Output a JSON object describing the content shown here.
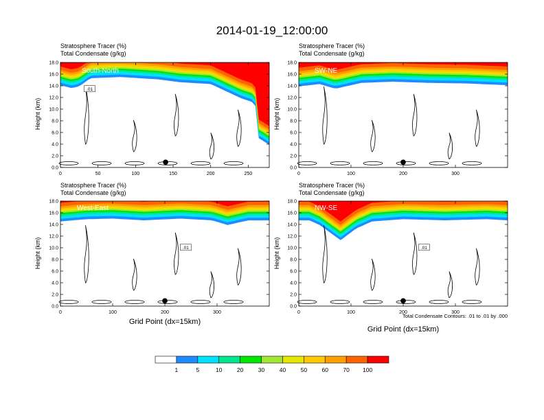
{
  "figure": {
    "title": "2014-01-19_12:00:00",
    "xlabel": "Grid Point (dx=15km)",
    "ylabel": "Height (km)",
    "contour_note": "Total Condensate Contours: .01 to .01 by .000"
  },
  "colors": {
    "bins": [
      "#ffffff",
      "#1e8cff",
      "#00e1ff",
      "#00e68c",
      "#00e600",
      "#a0e632",
      "#e6e600",
      "#ffc800",
      "#ffa000",
      "#ff6400",
      "#ff0000"
    ],
    "contour": "#000000",
    "marker": "#000000"
  },
  "colorbar": {
    "labels": [
      "1",
      "5",
      "10",
      "20",
      "30",
      "40",
      "50",
      "60",
      "70",
      "100"
    ]
  },
  "chart_data": [
    {
      "type": "heatmap",
      "name": "South-North",
      "line1": "Stratosphere Tracer   (%)",
      "line2": "Total Condensate   (g/kg)",
      "xlim": [
        0,
        278
      ],
      "ylim": [
        0,
        18
      ],
      "xticks": [
        "0",
        "50",
        "100",
        "150",
        "200",
        "250"
      ],
      "yticks": [
        "0.0",
        "2.0",
        "4.0",
        "6.0",
        "8.0",
        "10.0",
        "12.0",
        "14.0",
        "16.0",
        "18.0"
      ],
      "contour_label": ".01",
      "marker_x": 140,
      "tropopause_km": [
        [
          0,
          15.0
        ],
        [
          15,
          14.5
        ],
        [
          25,
          14.8
        ],
        [
          40,
          16.2
        ],
        [
          80,
          16.4
        ],
        [
          130,
          16.0
        ],
        [
          160,
          15.5
        ],
        [
          200,
          15.2
        ],
        [
          220,
          14.0
        ],
        [
          240,
          12.8
        ],
        [
          258,
          12.0
        ],
        [
          262,
          10.5
        ],
        [
          263,
          6.0
        ],
        [
          278,
          4.8
        ]
      ]
    },
    {
      "type": "heatmap",
      "name": "SW-NE",
      "line1": "Stratosphere Tracer   (%)",
      "line2": "Total Condensate   (g/kg)",
      "xlim": [
        0,
        400
      ],
      "ylim": [
        0,
        18
      ],
      "xticks": [
        "0",
        "100",
        "200",
        "300"
      ],
      "yticks": [
        "0.0",
        "2.0",
        "4.0",
        "6.0",
        "8.0",
        "10.0",
        "12.0",
        "14.0",
        "16.0",
        "18.0"
      ],
      "contour_label": "",
      "marker_x": 200,
      "tropopause_km": [
        [
          0,
          14.8
        ],
        [
          40,
          15.2
        ],
        [
          70,
          14.4
        ],
        [
          120,
          15.4
        ],
        [
          180,
          15.6
        ],
        [
          250,
          15.4
        ],
        [
          320,
          15.3
        ],
        [
          400,
          15.0
        ]
      ]
    },
    {
      "type": "heatmap",
      "name": "West-East",
      "line1": "Stratosphere Tracer   (%)",
      "line2": "Total Condensate   (g/kg)",
      "xlim": [
        0,
        400
      ],
      "ylim": [
        0,
        18
      ],
      "xticks": [
        "0",
        "100",
        "200",
        "300"
      ],
      "yticks": [
        "0.0",
        "2.0",
        "4.0",
        "6.0",
        "8.0",
        "10.0",
        "12.0",
        "14.0",
        "16.0",
        "18.0"
      ],
      "contour_label": ".01",
      "marker_x": 200,
      "tropopause_km": [
        [
          0,
          15.4
        ],
        [
          50,
          15.8
        ],
        [
          100,
          15.9
        ],
        [
          160,
          15.6
        ],
        [
          230,
          15.9
        ],
        [
          290,
          15.6
        ],
        [
          320,
          14.8
        ],
        [
          360,
          15.6
        ],
        [
          400,
          15.6
        ]
      ]
    },
    {
      "type": "heatmap",
      "name": "NW-SE",
      "line1": "",
      "line2": "",
      "xlim": [
        0,
        400
      ],
      "ylim": [
        0,
        18
      ],
      "xticks": [
        "0",
        "100",
        "200",
        "300"
      ],
      "yticks": [
        "0.0",
        "2.0",
        "4.0",
        "6.0",
        "8.0",
        "10.0",
        "12.0",
        "14.0",
        "16.0",
        "18.0"
      ],
      "contour_label": ".01",
      "marker_x": 200,
      "tropopause_km": [
        [
          0,
          15.6
        ],
        [
          20,
          15.6
        ],
        [
          40,
          14.8
        ],
        [
          80,
          12.2
        ],
        [
          110,
          14.2
        ],
        [
          140,
          15.4
        ],
        [
          200,
          15.8
        ],
        [
          280,
          15.6
        ],
        [
          360,
          15.8
        ],
        [
          400,
          15.6
        ]
      ]
    }
  ]
}
